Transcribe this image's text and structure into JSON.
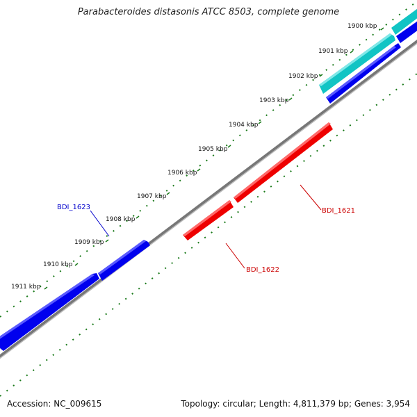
{
  "title": "Parabacteroides distasonis ATCC 8503, complete genome",
  "footer": {
    "accession": "Accession: NC_009615",
    "summary": "Topology: circular; Length: 4,811,379 bp; Genes: 3,954"
  },
  "ticks": [
    {
      "label": "1900 kbp"
    },
    {
      "label": "1901 kbp"
    },
    {
      "label": "1902 kbp"
    },
    {
      "label": "1903 kbp"
    },
    {
      "label": "1904 kbp"
    },
    {
      "label": "1905 kbp"
    },
    {
      "label": "1906 kbp"
    },
    {
      "label": "1907 kbp"
    },
    {
      "label": "1908 kbp"
    },
    {
      "label": "1909 kbp"
    },
    {
      "label": "1910 kbp"
    },
    {
      "label": "1911 kbp"
    }
  ],
  "gene_labels": [
    {
      "name": "BDI_1623",
      "color": "#0000cc"
    },
    {
      "name": "BDI_1621",
      "color": "#cc0000"
    },
    {
      "name": "BDI_1622",
      "color": "#cc0000"
    }
  ],
  "colors": {
    "forward_cds": "#0000ee",
    "reverse_cds": "#ee0000",
    "other_feature": "#11c4c4",
    "backbone": "#777777",
    "gc_track": "#1a7a1a"
  }
}
